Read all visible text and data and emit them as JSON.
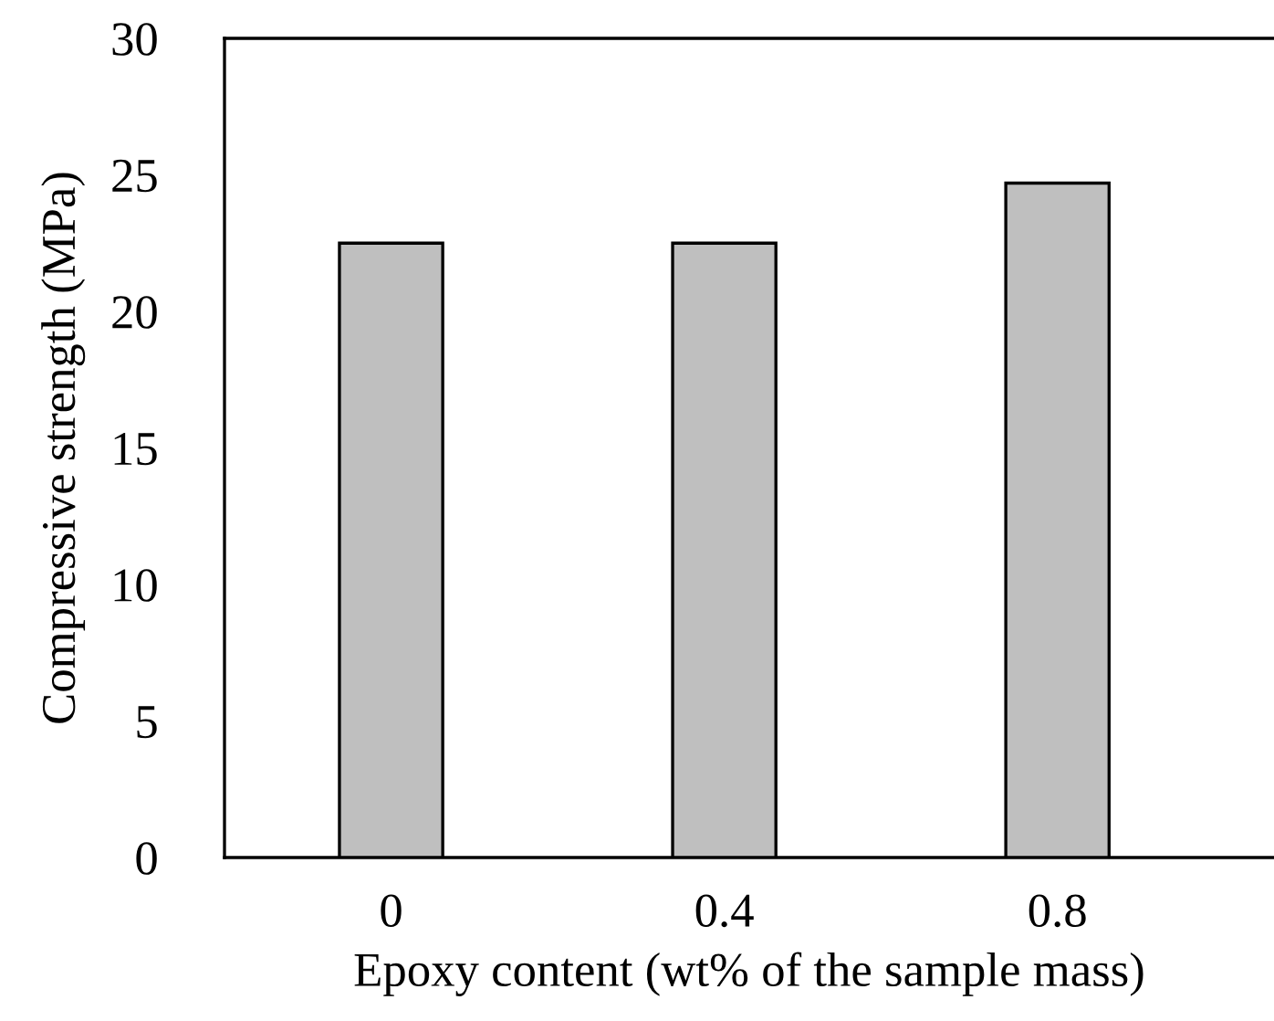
{
  "chart_data": {
    "type": "bar",
    "xlabel": "Epoxy content (wt% of the sample mass)",
    "ylabel": "Compressive strength (MPa)",
    "categories": [
      "0",
      "0.4",
      "0.8"
    ],
    "values": [
      22.5,
      22.5,
      24.7
    ],
    "color": "#bfbfbf",
    "ylim": [
      0,
      30
    ],
    "yticks": [
      0,
      5,
      10,
      15,
      20,
      25,
      30
    ],
    "grid": false,
    "legend": false
  }
}
